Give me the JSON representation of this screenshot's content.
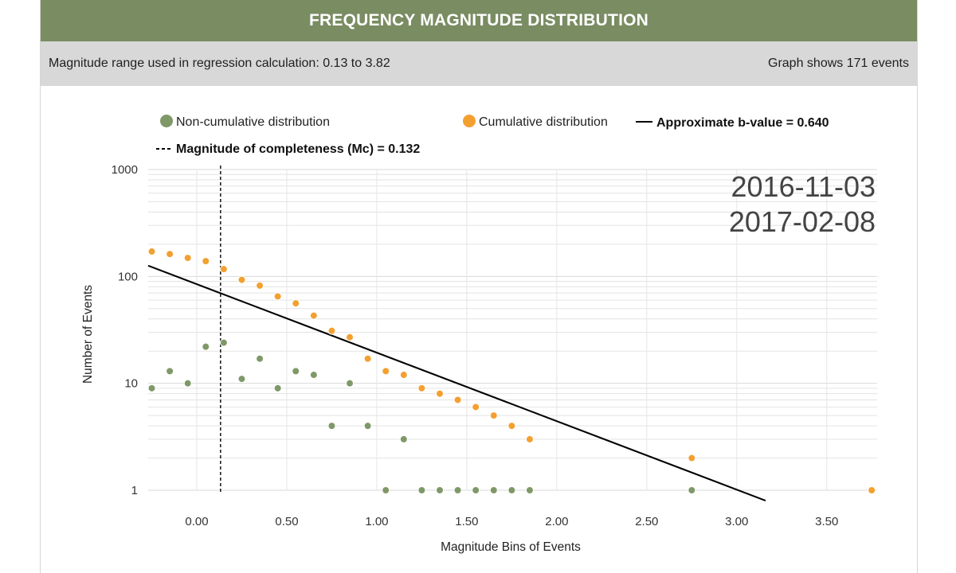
{
  "header": {
    "title": "FREQUENCY MAGNITUDE DISTRIBUTION"
  },
  "subheader": {
    "left": "Magnitude range used in regression calculation: 0.13 to 3.82",
    "right": "Graph shows 171 events"
  },
  "legend": {
    "noncum": "Non-cumulative distribution",
    "cum": "Cumulative distribution",
    "bvalue": "Approximate b-value = 0.640",
    "mc": "Magnitude of completeness (Mc) = 0.132"
  },
  "date_range": {
    "start": "2016-11-03",
    "end": "2017-02-08"
  },
  "colors": {
    "header": "#7a8c62",
    "noncum": "#7f9868",
    "cum": "#f3a030",
    "fit": "#000000",
    "grid": "#e3e3e3"
  },
  "chart_data": {
    "type": "scatter",
    "xlabel": "Magnitude Bins of Events",
    "ylabel": "Number of Events",
    "xlim": [
      -0.27,
      3.78
    ],
    "ylim": [
      1,
      1000
    ],
    "y_scale": "log",
    "grid": true,
    "legend_position": "top",
    "x_ticks": [
      "0.00",
      "0.50",
      "1.00",
      "1.50",
      "2.00",
      "2.50",
      "3.00",
      "3.50"
    ],
    "x_tick_values": [
      0,
      0.5,
      1,
      1.5,
      2,
      2.5,
      3,
      3.5
    ],
    "y_ticks": [
      "1",
      "10",
      "100",
      "1000"
    ],
    "y_tick_values": [
      1,
      10,
      100,
      1000
    ],
    "series": [
      {
        "name": "Non-cumulative distribution",
        "points": [
          [
            -0.25,
            9
          ],
          [
            -0.15,
            13
          ],
          [
            -0.05,
            10
          ],
          [
            0.05,
            22
          ],
          [
            0.15,
            24
          ],
          [
            0.25,
            11
          ],
          [
            0.35,
            17
          ],
          [
            0.45,
            9
          ],
          [
            0.55,
            13
          ],
          [
            0.65,
            12
          ],
          [
            0.75,
            4
          ],
          [
            0.85,
            10
          ],
          [
            0.95,
            4
          ],
          [
            1.05,
            1
          ],
          [
            1.15,
            3
          ],
          [
            1.25,
            1
          ],
          [
            1.35,
            1
          ],
          [
            1.45,
            1
          ],
          [
            1.55,
            1
          ],
          [
            1.65,
            1
          ],
          [
            1.75,
            1
          ],
          [
            1.85,
            1
          ],
          [
            2.75,
            1
          ]
        ]
      },
      {
        "name": "Cumulative distribution",
        "points": [
          [
            -0.25,
            171
          ],
          [
            -0.15,
            162
          ],
          [
            -0.05,
            149
          ],
          [
            0.05,
            139
          ],
          [
            0.15,
            117
          ],
          [
            0.25,
            93
          ],
          [
            0.35,
            82
          ],
          [
            0.45,
            65
          ],
          [
            0.55,
            56
          ],
          [
            0.65,
            43
          ],
          [
            0.75,
            31
          ],
          [
            0.85,
            27
          ],
          [
            0.95,
            17
          ],
          [
            1.05,
            13
          ],
          [
            1.15,
            12
          ],
          [
            1.25,
            9
          ],
          [
            1.35,
            8
          ],
          [
            1.45,
            7
          ],
          [
            1.55,
            6
          ],
          [
            1.65,
            5
          ],
          [
            1.75,
            4
          ],
          [
            1.85,
            3
          ],
          [
            2.75,
            2
          ],
          [
            3.75,
            1
          ]
        ]
      }
    ],
    "fit_line": {
      "name": "Approximate b-value = 0.640",
      "points": [
        [
          -0.27,
          126
        ],
        [
          3.16,
          0.8
        ]
      ]
    },
    "mc_line": {
      "name": "Magnitude of completeness (Mc) = 0.132",
      "x": 0.132
    }
  }
}
